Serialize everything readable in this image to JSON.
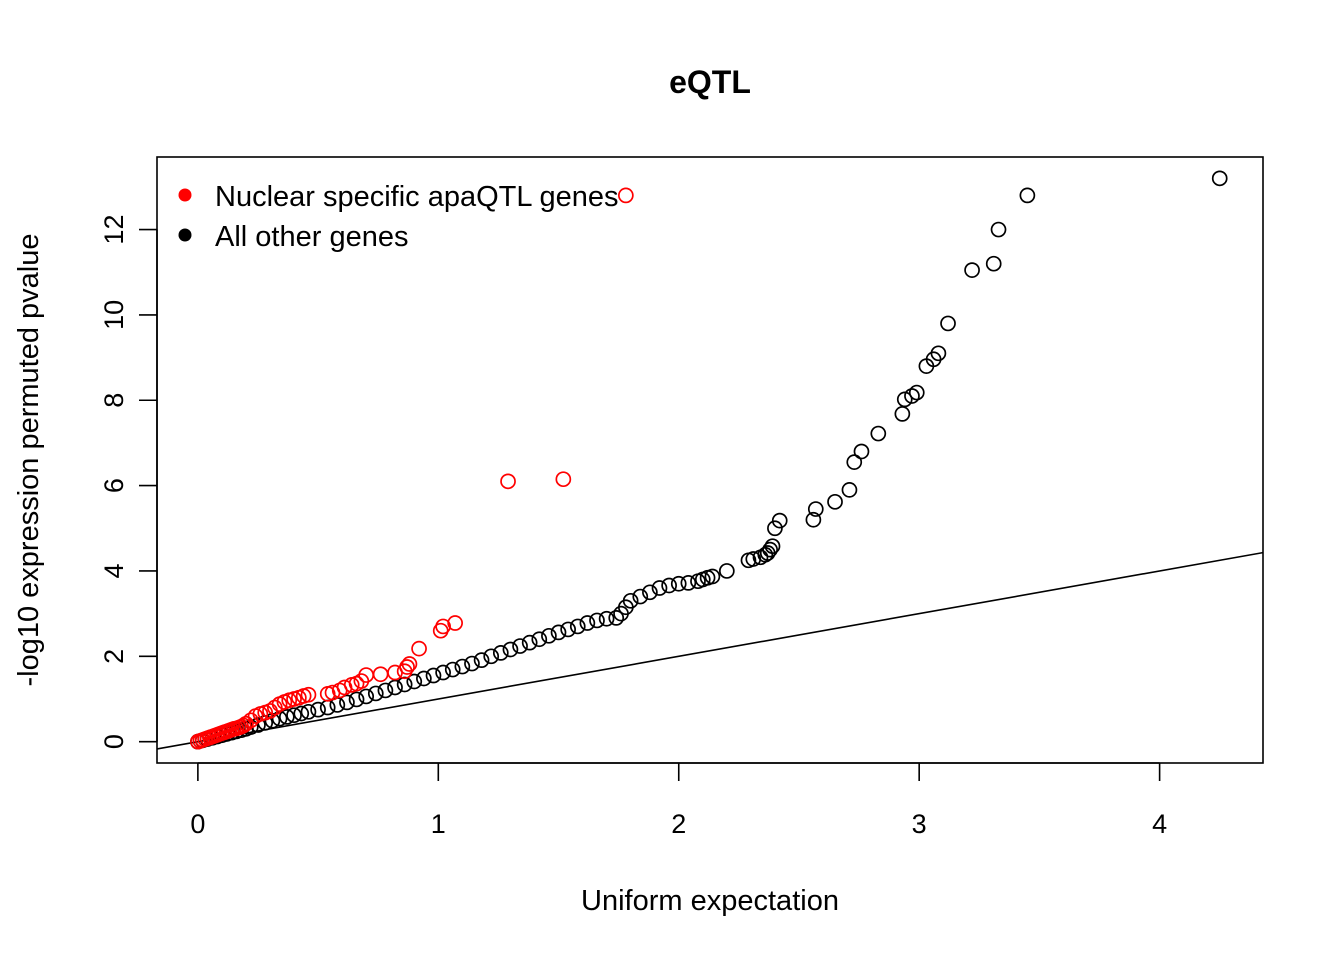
{
  "chart_data": {
    "type": "scatter",
    "title": "eQTL",
    "xlabel": "Uniform expectation",
    "ylabel": "-log10 expression permuted pvalue",
    "xlim": [
      -0.17,
      4.43
    ],
    "ylim": [
      -0.5,
      13.7
    ],
    "xticks": [
      0,
      1,
      2,
      3,
      4
    ],
    "yticks": [
      0,
      2,
      4,
      6,
      8,
      10,
      12
    ],
    "grid": false,
    "legend_position": "top-left",
    "reference_line": {
      "type": "identity",
      "slope": 1,
      "intercept": 0,
      "color": "#000000"
    },
    "series": [
      {
        "name": "Nuclear specific apaQTL genes",
        "color": "#ff0000",
        "marker": "open-circle",
        "x": [
          0.0,
          0.01,
          0.02,
          0.03,
          0.04,
          0.05,
          0.06,
          0.07,
          0.08,
          0.09,
          0.1,
          0.11,
          0.12,
          0.13,
          0.14,
          0.15,
          0.16,
          0.17,
          0.18,
          0.19,
          0.2,
          0.22,
          0.24,
          0.26,
          0.28,
          0.3,
          0.32,
          0.34,
          0.36,
          0.38,
          0.4,
          0.42,
          0.44,
          0.46,
          0.54,
          0.56,
          0.59,
          0.61,
          0.64,
          0.66,
          0.68,
          0.7,
          0.76,
          0.82,
          0.86,
          0.87,
          0.88,
          0.92,
          1.01,
          1.02,
          1.07,
          1.29,
          1.52,
          1.78
        ],
        "y": [
          0.0,
          0.02,
          0.04,
          0.06,
          0.08,
          0.1,
          0.12,
          0.14,
          0.16,
          0.18,
          0.2,
          0.22,
          0.24,
          0.26,
          0.28,
          0.3,
          0.31,
          0.33,
          0.35,
          0.38,
          0.42,
          0.5,
          0.6,
          0.65,
          0.68,
          0.72,
          0.8,
          0.88,
          0.93,
          0.97,
          1.0,
          1.03,
          1.07,
          1.1,
          1.12,
          1.15,
          1.2,
          1.27,
          1.33,
          1.36,
          1.42,
          1.56,
          1.58,
          1.62,
          1.65,
          1.75,
          1.82,
          2.18,
          2.6,
          2.7,
          2.78,
          6.1,
          6.15,
          12.8
        ]
      },
      {
        "name": "All other genes",
        "color": "#000000",
        "marker": "open-circle",
        "x": [
          0.0,
          0.02,
          0.04,
          0.06,
          0.08,
          0.1,
          0.12,
          0.14,
          0.16,
          0.18,
          0.2,
          0.22,
          0.25,
          0.28,
          0.31,
          0.34,
          0.37,
          0.4,
          0.43,
          0.46,
          0.5,
          0.54,
          0.58,
          0.62,
          0.66,
          0.7,
          0.74,
          0.78,
          0.82,
          0.86,
          0.9,
          0.94,
          0.98,
          1.02,
          1.06,
          1.1,
          1.14,
          1.18,
          1.22,
          1.26,
          1.3,
          1.34,
          1.38,
          1.42,
          1.46,
          1.5,
          1.54,
          1.58,
          1.62,
          1.66,
          1.7,
          1.74,
          1.76,
          1.78,
          1.8,
          1.84,
          1.88,
          1.92,
          1.96,
          2.0,
          2.04,
          2.08,
          2.1,
          2.12,
          2.14,
          2.2,
          2.29,
          2.31,
          2.34,
          2.36,
          2.37,
          2.38,
          2.39,
          2.4,
          2.42,
          2.56,
          2.57,
          2.65,
          2.71,
          2.73,
          2.76,
          2.83,
          2.93,
          2.94,
          2.97,
          2.99,
          3.03,
          3.06,
          3.08,
          3.12,
          3.22,
          3.31,
          3.33,
          3.45,
          4.25
        ],
        "y": [
          0.0,
          0.03,
          0.06,
          0.09,
          0.12,
          0.15,
          0.18,
          0.21,
          0.24,
          0.27,
          0.3,
          0.34,
          0.39,
          0.44,
          0.49,
          0.54,
          0.58,
          0.62,
          0.66,
          0.7,
          0.75,
          0.8,
          0.86,
          0.92,
          0.99,
          1.06,
          1.13,
          1.2,
          1.27,
          1.34,
          1.41,
          1.48,
          1.55,
          1.62,
          1.69,
          1.76,
          1.83,
          1.91,
          2.0,
          2.08,
          2.16,
          2.24,
          2.32,
          2.4,
          2.48,
          2.56,
          2.63,
          2.7,
          2.78,
          2.84,
          2.88,
          2.9,
          3.0,
          3.15,
          3.3,
          3.4,
          3.5,
          3.6,
          3.66,
          3.7,
          3.72,
          3.76,
          3.8,
          3.84,
          3.87,
          4.0,
          4.25,
          4.28,
          4.32,
          4.38,
          4.42,
          4.5,
          4.58,
          5.0,
          5.18,
          5.2,
          5.45,
          5.62,
          5.9,
          6.55,
          6.8,
          7.22,
          7.68,
          8.02,
          8.1,
          8.18,
          8.8,
          8.96,
          9.1,
          9.8,
          11.05,
          11.2,
          12.0,
          12.8,
          13.2
        ]
      }
    ]
  }
}
